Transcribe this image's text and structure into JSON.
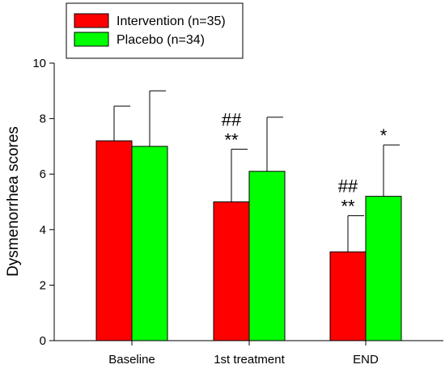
{
  "chart_data": {
    "type": "bar",
    "categories": [
      "Baseline",
      "1st treatment",
      "END"
    ],
    "ylabel": "Dysmenorrhea scores",
    "xlabel": "",
    "ylim": [
      0,
      10
    ],
    "yticks": [
      "0",
      "2",
      "4",
      "6",
      "8",
      "10"
    ],
    "series": [
      {
        "name": "Intervention (n=35)",
        "color": "#ff0000",
        "values": [
          7.2,
          5.0,
          3.2
        ],
        "error": [
          1.25,
          1.9,
          1.3
        ]
      },
      {
        "name": "Placebo (n=34)",
        "color": "#00ff00",
        "values": [
          7.0,
          6.1,
          5.2
        ],
        "error": [
          2.0,
          1.95,
          1.85
        ]
      }
    ],
    "annotations": [
      {
        "category": 1,
        "series": 0,
        "lines": [
          "##",
          "**"
        ]
      },
      {
        "category": 2,
        "series": 0,
        "lines": [
          "##",
          "**"
        ]
      },
      {
        "category": 2,
        "series": 1,
        "lines": [
          "*"
        ]
      }
    ],
    "legend_position": "top-left"
  }
}
